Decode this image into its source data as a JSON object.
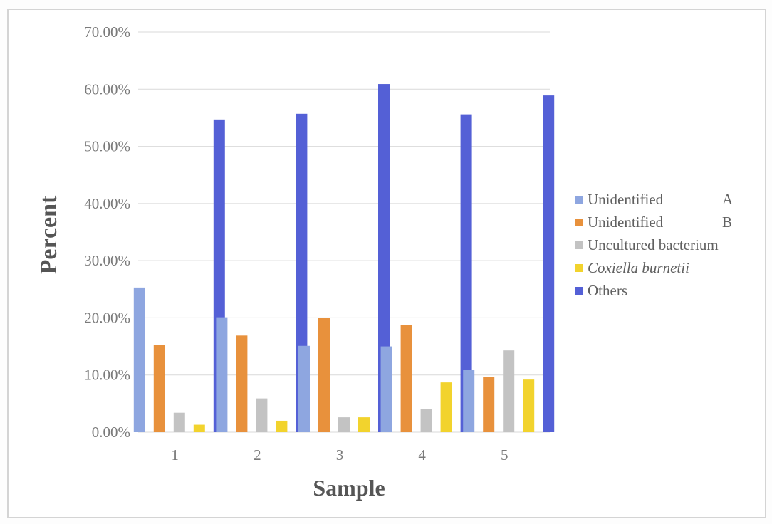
{
  "chart_data": {
    "type": "bar",
    "categories": [
      "1",
      "2",
      "3",
      "4",
      "5"
    ],
    "series": [
      {
        "name": "Unidentified",
        "legend_suffix": "A",
        "color": "#8ea6e0",
        "values": [
          25.3,
          20.1,
          15.1,
          15.0,
          10.9
        ]
      },
      {
        "name": "Unidentified",
        "legend_suffix": "B",
        "color": "#e8913c",
        "values": [
          15.3,
          16.9,
          20.0,
          18.7,
          9.7
        ]
      },
      {
        "name": "Uncultured bacterium",
        "color": "#c3c3c3",
        "values": [
          3.4,
          5.9,
          2.6,
          4.0,
          14.3
        ]
      },
      {
        "name": "Coxiella burnetii",
        "italic": true,
        "color": "#f2d32d",
        "values": [
          1.3,
          2.0,
          2.6,
          8.7,
          9.2
        ]
      },
      {
        "name": "Others",
        "color": "#5460d6",
        "values": [
          54.7,
          55.7,
          60.9,
          55.6,
          58.9
        ]
      }
    ],
    "xlabel": "Sample",
    "ylabel": "Percent",
    "yticks": [
      "0.00%",
      "10.00%",
      "20.00%",
      "30.00%",
      "40.00%",
      "50.00%",
      "60.00%",
      "70.00%"
    ],
    "ylim": [
      0,
      70
    ],
    "grid": true,
    "legend_position": "right"
  }
}
